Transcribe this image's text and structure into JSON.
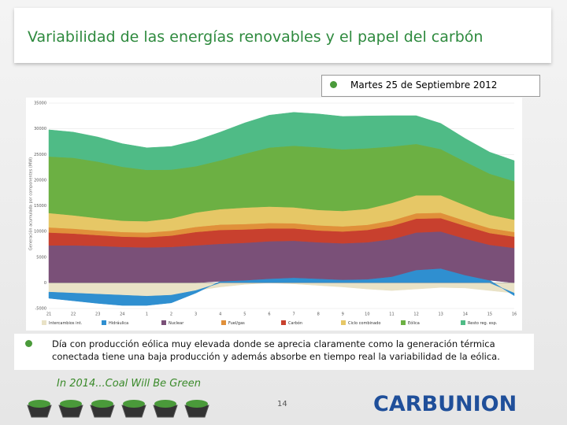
{
  "slide": {
    "title": "Variabilidad de las energías renovables y el papel del carbón",
    "date": "Martes 25 de Septiembre 2012",
    "note": "Día con producción eólica muy elevada donde se aprecia claramente como la generación térmica conectada tiene una baja producción y además absorbe en tiempo real la variabilidad de la eólica.",
    "slogan": "In 2014...Coal Will Be Green",
    "page": "14",
    "logo": "CARBUNION"
  },
  "chart_data": {
    "type": "stacked-area",
    "y_label": "Generación acumulada por componentes (MW)",
    "categories": [
      "21",
      "22",
      "23",
      "24",
      "1",
      "2",
      "3",
      "4",
      "5",
      "6",
      "7",
      "8",
      "9",
      "10",
      "11",
      "12",
      "13",
      "14",
      "15",
      "16"
    ],
    "ylim": [
      -5000,
      35000
    ],
    "yticks": [
      -5000,
      0,
      5000,
      10000,
      15000,
      20000,
      25000,
      30000,
      35000
    ],
    "grid": true,
    "series": [
      {
        "name": "Intercambios int.",
        "color": "#e9e2c6",
        "values": [
          -1800,
          -2000,
          -2200,
          -2400,
          -2600,
          -2400,
          -1500,
          -800,
          -300,
          0,
          -200,
          -500,
          -800,
          -1200,
          -1500,
          -1200,
          -900,
          -1000,
          -1500,
          -2000
        ]
      },
      {
        "name": "Hidráulica",
        "color": "#2f8fd0",
        "values": [
          -1200,
          -1500,
          -1800,
          -2000,
          -1800,
          -1500,
          -500,
          300,
          500,
          800,
          1000,
          800,
          600,
          700,
          1200,
          2500,
          2800,
          1500,
          500,
          -500
        ]
      },
      {
        "name": "Nuclear",
        "color": "#7a5078",
        "values": [
          7300,
          7300,
          7200,
          7000,
          6900,
          7000,
          7300,
          7300,
          7300,
          7300,
          7200,
          7100,
          7100,
          7200,
          7300,
          7300,
          7200,
          7100,
          6900,
          6800
        ]
      },
      {
        "name": "Fuel/gas",
        "color": "#e0903a",
        "values": [
          1000,
          950,
          900,
          900,
          900,
          950,
          1000,
          1050,
          1050,
          1050,
          1000,
          1000,
          1000,
          1000,
          1050,
          1050,
          1050,
          1000,
          950,
          900
        ]
      },
      {
        "name": "Carbón",
        "color": "#c8402e",
        "values": [
          2500,
          2300,
          2100,
          2000,
          2000,
          2200,
          2600,
          2700,
          2600,
          2500,
          2400,
          2300,
          2300,
          2400,
          2600,
          2700,
          2600,
          2500,
          2300,
          2200
        ]
      },
      {
        "name": "Ciclo combinado",
        "color": "#e6c766",
        "values": [
          2800,
          2600,
          2400,
          2200,
          2200,
          2400,
          2800,
          3000,
          3200,
          3200,
          3100,
          3000,
          3000,
          3100,
          3400,
          3500,
          3400,
          3000,
          2600,
          2400
        ]
      },
      {
        "name": "Eólica",
        "color": "#6cb043",
        "values": [
          11000,
          11200,
          11000,
          10500,
          10000,
          9500,
          9000,
          9500,
          10500,
          11500,
          12000,
          12200,
          12000,
          11800,
          11000,
          10000,
          9000,
          8500,
          8000,
          7500
        ]
      },
      {
        "name": "Resto reg. esp.",
        "color": "#4fbb86",
        "values": [
          5200,
          5000,
          4800,
          4500,
          4300,
          4500,
          5000,
          5500,
          6000,
          6300,
          6500,
          6500,
          6400,
          6300,
          6000,
          5500,
          5000,
          4500,
          4200,
          4000
        ]
      }
    ]
  }
}
